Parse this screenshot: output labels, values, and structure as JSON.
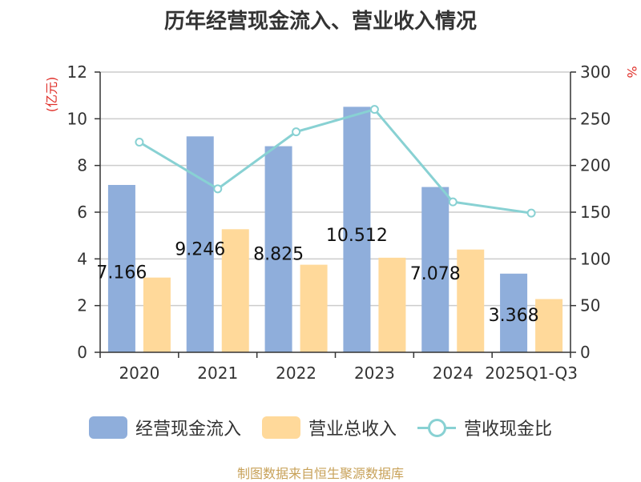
{
  "chart_data": {
    "type": "bar",
    "title": "历年经营现金流入、营业收入情况",
    "categories": [
      "2020",
      "2021",
      "2022",
      "2023",
      "2024",
      "2025Q1-Q3"
    ],
    "left_axis": {
      "unit_label": "(亿元)",
      "ylim": [
        0,
        12
      ],
      "ticks": [
        "0",
        "2",
        "4",
        "6",
        "8",
        "10",
        "12"
      ]
    },
    "right_axis": {
      "unit_label": "%",
      "ylim": [
        0,
        300
      ],
      "ticks": [
        "0",
        "50",
        "100",
        "150",
        "200",
        "250",
        "300"
      ]
    },
    "grid": true,
    "legend_position": "bottom",
    "series": [
      {
        "name": "经营现金流入",
        "type": "bar",
        "axis": "left",
        "color": "#8faedb",
        "values": [
          7.166,
          9.246,
          8.825,
          10.512,
          7.078,
          3.368
        ],
        "data_labels": [
          "7.166",
          "9.246",
          "8.825",
          "10.512",
          "7.078",
          "3.368"
        ]
      },
      {
        "name": "营业总收入",
        "type": "bar",
        "axis": "left",
        "color": "#ffd99a",
        "values": [
          3.2,
          5.27,
          3.75,
          4.05,
          4.4,
          2.28
        ]
      },
      {
        "name": "营收现金比",
        "type": "line",
        "axis": "right",
        "color": "#88d1d3",
        "values": [
          225,
          175,
          236,
          260,
          161,
          149
        ]
      }
    ]
  },
  "source_text": "制图数据来自恒生聚源数据库"
}
